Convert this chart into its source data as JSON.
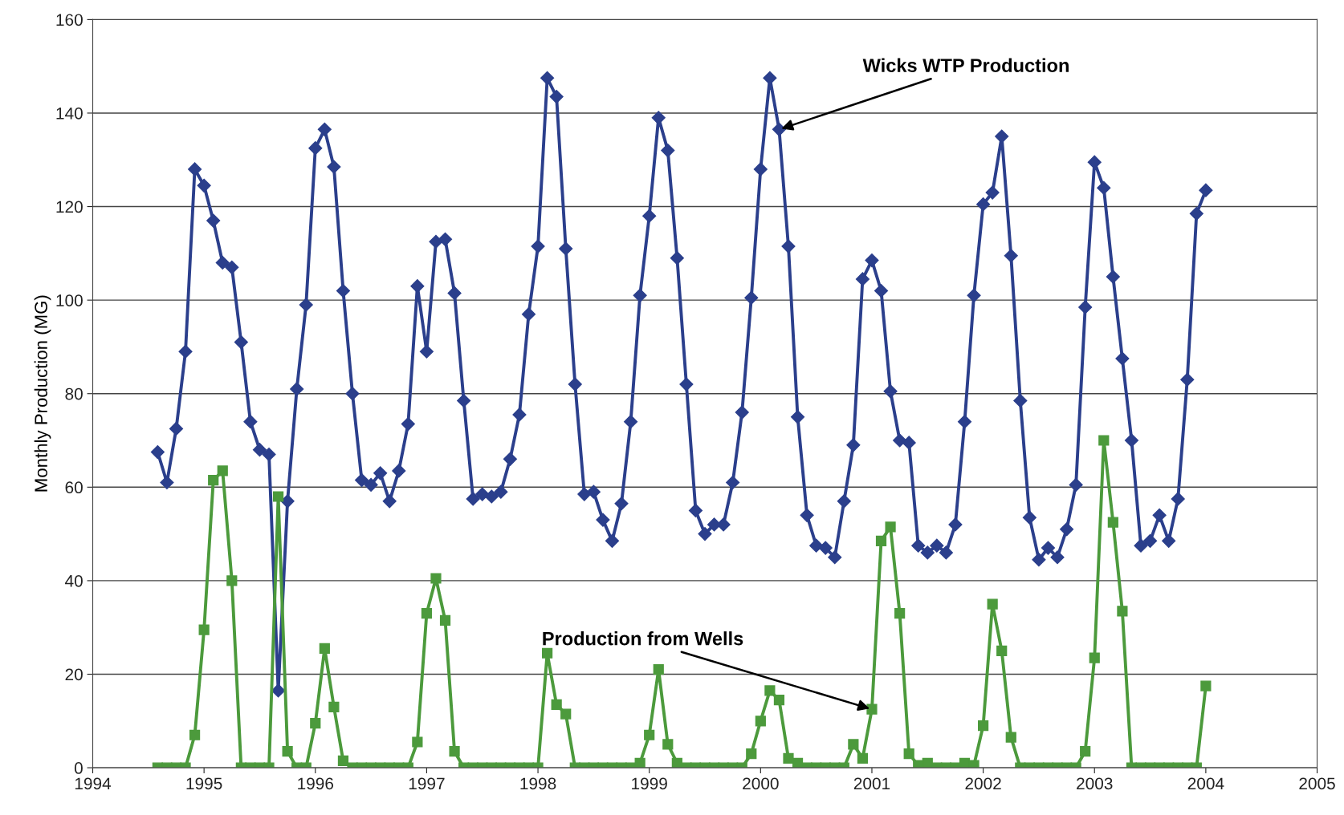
{
  "chart_data": {
    "type": "line",
    "ylabel": "Monthly Production (MG)",
    "x": [
      "1994-08",
      "1994-09",
      "1994-10",
      "1994-11",
      "1994-12",
      "1995-01",
      "1995-02",
      "1995-03",
      "1995-04",
      "1995-05",
      "1995-06",
      "1995-07",
      "1995-08",
      "1995-09",
      "1995-10",
      "1995-11",
      "1995-12",
      "1996-01",
      "1996-02",
      "1996-03",
      "1996-04",
      "1996-05",
      "1996-06",
      "1996-07",
      "1996-08",
      "1996-09",
      "1996-10",
      "1996-11",
      "1996-12",
      "1997-01",
      "1997-02",
      "1997-03",
      "1997-04",
      "1997-05",
      "1997-06",
      "1997-07",
      "1997-08",
      "1997-09",
      "1997-10",
      "1997-11",
      "1997-12",
      "1998-01",
      "1998-02",
      "1998-03",
      "1998-04",
      "1998-05",
      "1998-06",
      "1998-07",
      "1998-08",
      "1998-09",
      "1998-10",
      "1998-11",
      "1998-12",
      "1999-01",
      "1999-02",
      "1999-03",
      "1999-04",
      "1999-05",
      "1999-06",
      "1999-07",
      "1999-08",
      "1999-09",
      "1999-10",
      "1999-11",
      "1999-12",
      "2000-01",
      "2000-02",
      "2000-03",
      "2000-04",
      "2000-05",
      "2000-06",
      "2000-07",
      "2000-08",
      "2000-09",
      "2000-10",
      "2000-11",
      "2000-12",
      "2001-01",
      "2001-02",
      "2001-03",
      "2001-04",
      "2001-05",
      "2001-06",
      "2001-07",
      "2001-08",
      "2001-09",
      "2001-10",
      "2001-11",
      "2001-12",
      "2002-01",
      "2002-02",
      "2002-03",
      "2002-04",
      "2002-05",
      "2002-06",
      "2002-07",
      "2002-08",
      "2002-09",
      "2002-10",
      "2002-11",
      "2002-12",
      "2003-01",
      "2003-02",
      "2003-03",
      "2003-04",
      "2003-05",
      "2003-06",
      "2003-07",
      "2003-08",
      "2003-09",
      "2003-10",
      "2003-11",
      "2003-12",
      "2004-01"
    ],
    "series": [
      {
        "color": "#2b3f8c",
        "marker": "diamond",
        "values": [
          67.5,
          61,
          72.5,
          89,
          128,
          124.5,
          117,
          108,
          107,
          91,
          74,
          68,
          67,
          16.5,
          57,
          81,
          99,
          132.5,
          136.5,
          128.5,
          102,
          80,
          61.5,
          60.5,
          63,
          57,
          63.5,
          73.5,
          103,
          89,
          112.5,
          113,
          101.5,
          78.5,
          57.5,
          58.5,
          58,
          59,
          66,
          75.5,
          97,
          111.5,
          147.5,
          143.5,
          111,
          82,
          58.5,
          59,
          53,
          48.5,
          56.5,
          74,
          101,
          118,
          139,
          132,
          109,
          82,
          55,
          50,
          52,
          52,
          61,
          76,
          100.5,
          128,
          147.5,
          136.5,
          111.5,
          75,
          54,
          47.5,
          47,
          45,
          57,
          69,
          104.5,
          108.5,
          102,
          80.5,
          70,
          69.5,
          47.5,
          46,
          47.5,
          46,
          52,
          74,
          101,
          120.5,
          123,
          135,
          109.5,
          78.5,
          53.5,
          44.5,
          47,
          45,
          51,
          60.5,
          98.5,
          129.5,
          124,
          105,
          87.5,
          70,
          47.5,
          48.5,
          54,
          48.5,
          57.5,
          83,
          118.5,
          123.5
        ]
      },
      {
        "color": "#4c9a3c",
        "marker": "square",
        "values": [
          0,
          0,
          0,
          0,
          7,
          29.5,
          61.5,
          63.5,
          40,
          0,
          0,
          0,
          0,
          58,
          3.5,
          0,
          0,
          9.5,
          25.5,
          13,
          1.5,
          0,
          0,
          0,
          0,
          0,
          0,
          0,
          5.5,
          33,
          40.5,
          31.5,
          3.5,
          0,
          0,
          0,
          0,
          0,
          0,
          0,
          0,
          0,
          24.5,
          13.5,
          11.5,
          0,
          0,
          0,
          0,
          0,
          0,
          0,
          1,
          7,
          21,
          5,
          1,
          0,
          0,
          0,
          0,
          0,
          0,
          0,
          3,
          10,
          16.5,
          14.5,
          2,
          1,
          0,
          0,
          0,
          0,
          0,
          5,
          2,
          12.5,
          48.5,
          51.5,
          33,
          3,
          0.5,
          1,
          0,
          0,
          0,
          1,
          0.5,
          9,
          35,
          25,
          6.5,
          0,
          0,
          0,
          0,
          0,
          0,
          0,
          3.5,
          23.5,
          70,
          52.5,
          33.5,
          0,
          0,
          0,
          0,
          0,
          0,
          0,
          0,
          17.5
        ]
      }
    ],
    "xlim": [
      "1994",
      "2005"
    ],
    "xticks": [
      "1994",
      "1995",
      "1996",
      "1997",
      "1998",
      "1999",
      "2000",
      "2001",
      "2002",
      "2003",
      "2004",
      "2005"
    ],
    "ylim": [
      0,
      160
    ],
    "yticks": [
      0,
      20,
      40,
      60,
      80,
      100,
      120,
      140,
      160
    ],
    "grid": "y",
    "legend": false,
    "annotations": [
      {
        "text": "Wicks WTP Production",
        "x": "2000-03",
        "y": 136.5
      },
      {
        "text": "Production from Wells",
        "x": "2001-01",
        "y": 12.5
      }
    ]
  }
}
